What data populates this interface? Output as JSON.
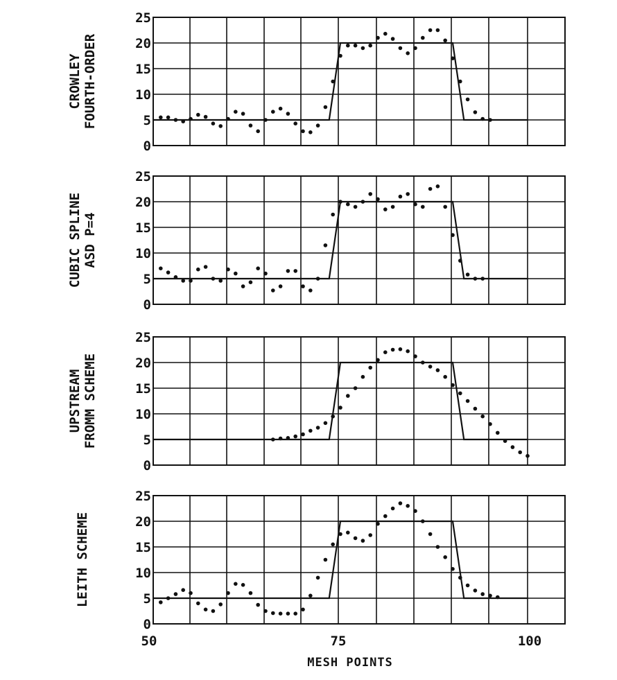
{
  "chart_data": [
    {
      "type": "scatter",
      "label_lines": [
        "CROWLEY",
        "FOURTH-ORDER"
      ],
      "ylim": [
        0,
        25
      ],
      "yticks": [
        0,
        5,
        10,
        15,
        20,
        25
      ],
      "xlim": [
        50,
        100
      ],
      "exact_solution": {
        "x": [
          50,
          73.5,
          75,
          90,
          91.5,
          100
        ],
        "y": [
          5,
          5,
          20,
          20,
          5,
          5
        ]
      },
      "points": {
        "x": [
          51,
          52,
          53,
          54,
          55,
          56,
          57,
          58,
          59,
          60,
          61,
          62,
          63,
          64,
          65,
          66,
          67,
          68,
          69,
          70,
          71,
          72,
          73,
          74,
          75,
          76,
          77,
          78,
          79,
          80,
          81,
          82,
          83,
          84,
          85,
          86,
          87,
          88,
          89,
          90,
          91,
          92,
          93,
          94,
          95
        ],
        "y": [
          5.5,
          5.5,
          5.0,
          4.7,
          5.2,
          6.0,
          5.6,
          4.3,
          3.8,
          5.2,
          6.6,
          6.2,
          3.9,
          2.8,
          5.0,
          6.6,
          7.2,
          6.2,
          4.3,
          2.8,
          2.6,
          3.9,
          7.5,
          12.5,
          17.5,
          19.5,
          19.5,
          19.0,
          19.5,
          21.0,
          21.8,
          20.8,
          19.0,
          18.0,
          19.0,
          21.0,
          22.5,
          22.5,
          20.5,
          17.0,
          12.5,
          9.0,
          6.5,
          5.2,
          5.0
        ]
      }
    },
    {
      "type": "scatter",
      "label_lines": [
        "CUBIC SPLINE",
        "ASD  P=4"
      ],
      "ylim": [
        0,
        25
      ],
      "yticks": [
        0,
        5,
        10,
        15,
        20,
        25
      ],
      "xlim": [
        50,
        100
      ],
      "exact_solution": {
        "x": [
          50,
          73.5,
          75,
          90,
          91.5,
          100
        ],
        "y": [
          5,
          5,
          20,
          20,
          5,
          5
        ]
      },
      "points": {
        "x": [
          51,
          52,
          53,
          54,
          55,
          56,
          57,
          58,
          59,
          60,
          61,
          62,
          63,
          64,
          65,
          66,
          67,
          68,
          69,
          70,
          71,
          72,
          73,
          74,
          75,
          76,
          77,
          78,
          79,
          80,
          81,
          82,
          83,
          84,
          85,
          86,
          87,
          88,
          89,
          90,
          91,
          92,
          93,
          94
        ],
        "y": [
          7.0,
          6.2,
          5.3,
          4.6,
          4.6,
          6.8,
          7.3,
          5.0,
          4.6,
          6.8,
          6.0,
          3.5,
          4.3,
          7.0,
          6.0,
          2.7,
          3.5,
          6.5,
          6.5,
          3.5,
          2.7,
          5.0,
          11.5,
          17.5,
          20.0,
          19.5,
          19.0,
          20.0,
          21.5,
          20.5,
          18.5,
          19.0,
          21.0,
          21.5,
          19.5,
          19.0,
          22.5,
          23.0,
          19.0,
          13.5,
          8.5,
          5.8,
          5.0,
          5.0
        ]
      }
    },
    {
      "type": "scatter",
      "label_lines": [
        "UPSTREAM",
        "FROMM SCHEME"
      ],
      "ylim": [
        0,
        25
      ],
      "yticks": [
        0,
        5,
        10,
        15,
        20,
        25
      ],
      "xlim": [
        50,
        100
      ],
      "exact_solution": {
        "x": [
          50,
          73.5,
          75,
          90,
          91.5,
          100
        ],
        "y": [
          5,
          5,
          20,
          20,
          5,
          5
        ]
      },
      "points": {
        "x": [
          66,
          67,
          68,
          69,
          70,
          71,
          72,
          73,
          74,
          75,
          76,
          77,
          78,
          79,
          80,
          81,
          82,
          83,
          84,
          85,
          86,
          87,
          88,
          89,
          90,
          91,
          92,
          93,
          94,
          95,
          96,
          97,
          98,
          99,
          100
        ],
        "y": [
          5.0,
          5.2,
          5.3,
          5.6,
          6.0,
          6.7,
          7.3,
          8.2,
          9.5,
          11.2,
          13.5,
          15.0,
          17.2,
          19.0,
          20.5,
          22.0,
          22.5,
          22.6,
          22.2,
          21.2,
          20.0,
          19.2,
          18.5,
          17.2,
          15.6,
          14.0,
          12.5,
          11.0,
          9.5,
          8.0,
          6.3,
          4.7,
          3.5,
          2.5,
          1.8
        ]
      }
    },
    {
      "type": "scatter",
      "label_lines": [
        "LEITH SCHEME"
      ],
      "ylim": [
        0,
        25
      ],
      "yticks": [
        0,
        5,
        10,
        15,
        20,
        25
      ],
      "xlim": [
        50,
        100
      ],
      "exact_solution": {
        "x": [
          50,
          73.5,
          75,
          90,
          91.5,
          100
        ],
        "y": [
          5,
          5,
          20,
          20,
          5,
          5
        ]
      },
      "points": {
        "x": [
          51,
          52,
          53,
          54,
          55,
          56,
          57,
          58,
          59,
          60,
          61,
          62,
          63,
          64,
          65,
          66,
          67,
          68,
          69,
          70,
          71,
          72,
          73,
          74,
          75,
          76,
          77,
          78,
          79,
          80,
          81,
          82,
          83,
          84,
          85,
          86,
          87,
          88,
          89,
          90,
          91,
          92,
          93,
          94,
          95,
          96
        ],
        "y": [
          4.2,
          5.0,
          5.8,
          6.6,
          6.0,
          4.0,
          2.8,
          2.5,
          3.8,
          6.0,
          7.8,
          7.6,
          6.0,
          3.7,
          2.5,
          2.1,
          2.0,
          2.0,
          2.0,
          2.8,
          5.5,
          9.0,
          12.5,
          15.5,
          17.5,
          17.8,
          16.7,
          16.2,
          17.3,
          19.5,
          21.0,
          22.5,
          23.5,
          23.0,
          22.0,
          20.0,
          17.5,
          15.0,
          13.0,
          10.7,
          9.0,
          7.5,
          6.5,
          5.8,
          5.5,
          5.2
        ]
      }
    }
  ],
  "x_axis": {
    "ticks": [
      50,
      75,
      100
    ],
    "tick_labels": [
      "50",
      "75",
      "100"
    ],
    "xlabel": "MESH POINTS"
  }
}
